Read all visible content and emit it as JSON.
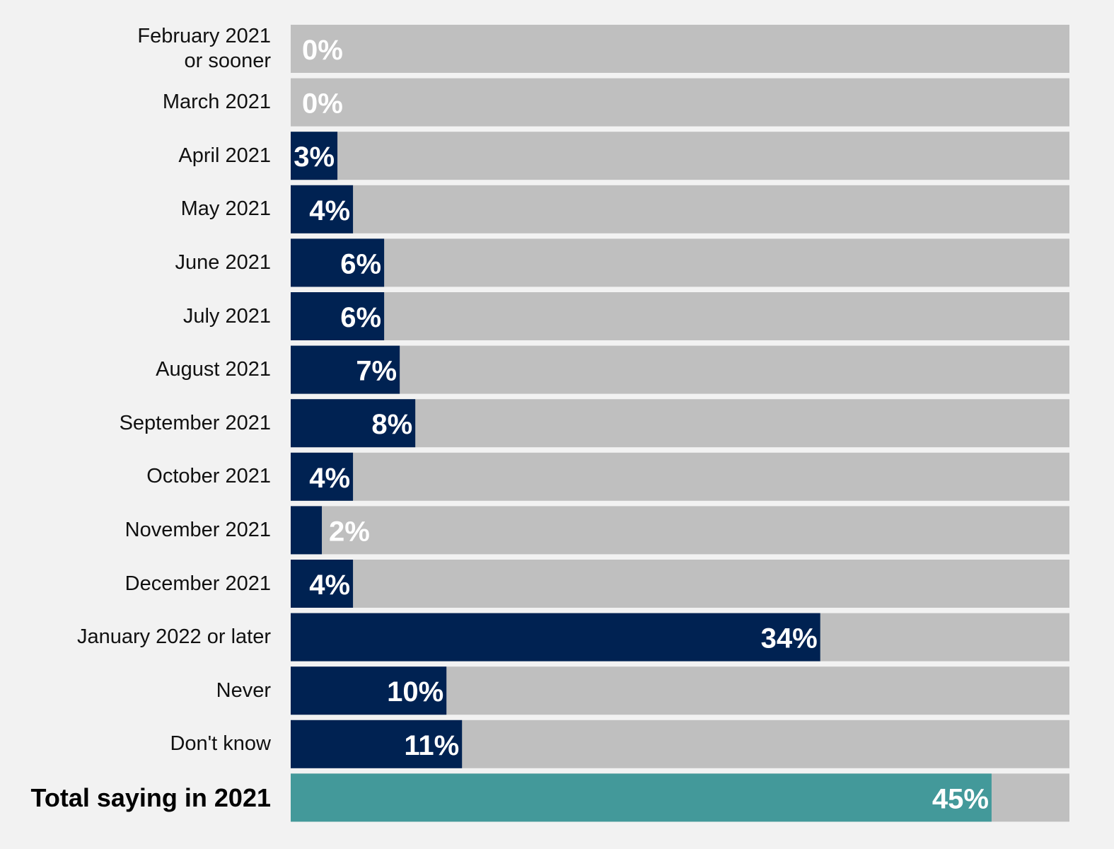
{
  "chart_data": {
    "type": "bar",
    "orientation": "horizontal",
    "categories": [
      "February 2021\nor sooner",
      "March 2021",
      "April 2021",
      "May 2021",
      "June 2021",
      "July 2021",
      "August 2021",
      "September 2021",
      "October 2021",
      "November 2021",
      "December 2021",
      "January 2022 or later",
      "Never",
      "Don't know",
      "Total saying in 2021"
    ],
    "values": [
      0,
      0,
      3,
      4,
      6,
      6,
      7,
      8,
      4,
      2,
      4,
      34,
      10,
      11,
      45
    ],
    "value_labels": [
      "0%",
      "0%",
      "3%",
      "4%",
      "6%",
      "6%",
      "7%",
      "8%",
      "4%",
      "2%",
      "4%",
      "34%",
      "10%",
      "11%",
      "45%"
    ],
    "colors": [
      "#002252",
      "#002252",
      "#002252",
      "#002252",
      "#002252",
      "#002252",
      "#002252",
      "#002252",
      "#002252",
      "#002252",
      "#002252",
      "#002252",
      "#002252",
      "#002252",
      "#43999a"
    ],
    "track_color": "#bfbfbf",
    "xlim": [
      0,
      50
    ]
  }
}
